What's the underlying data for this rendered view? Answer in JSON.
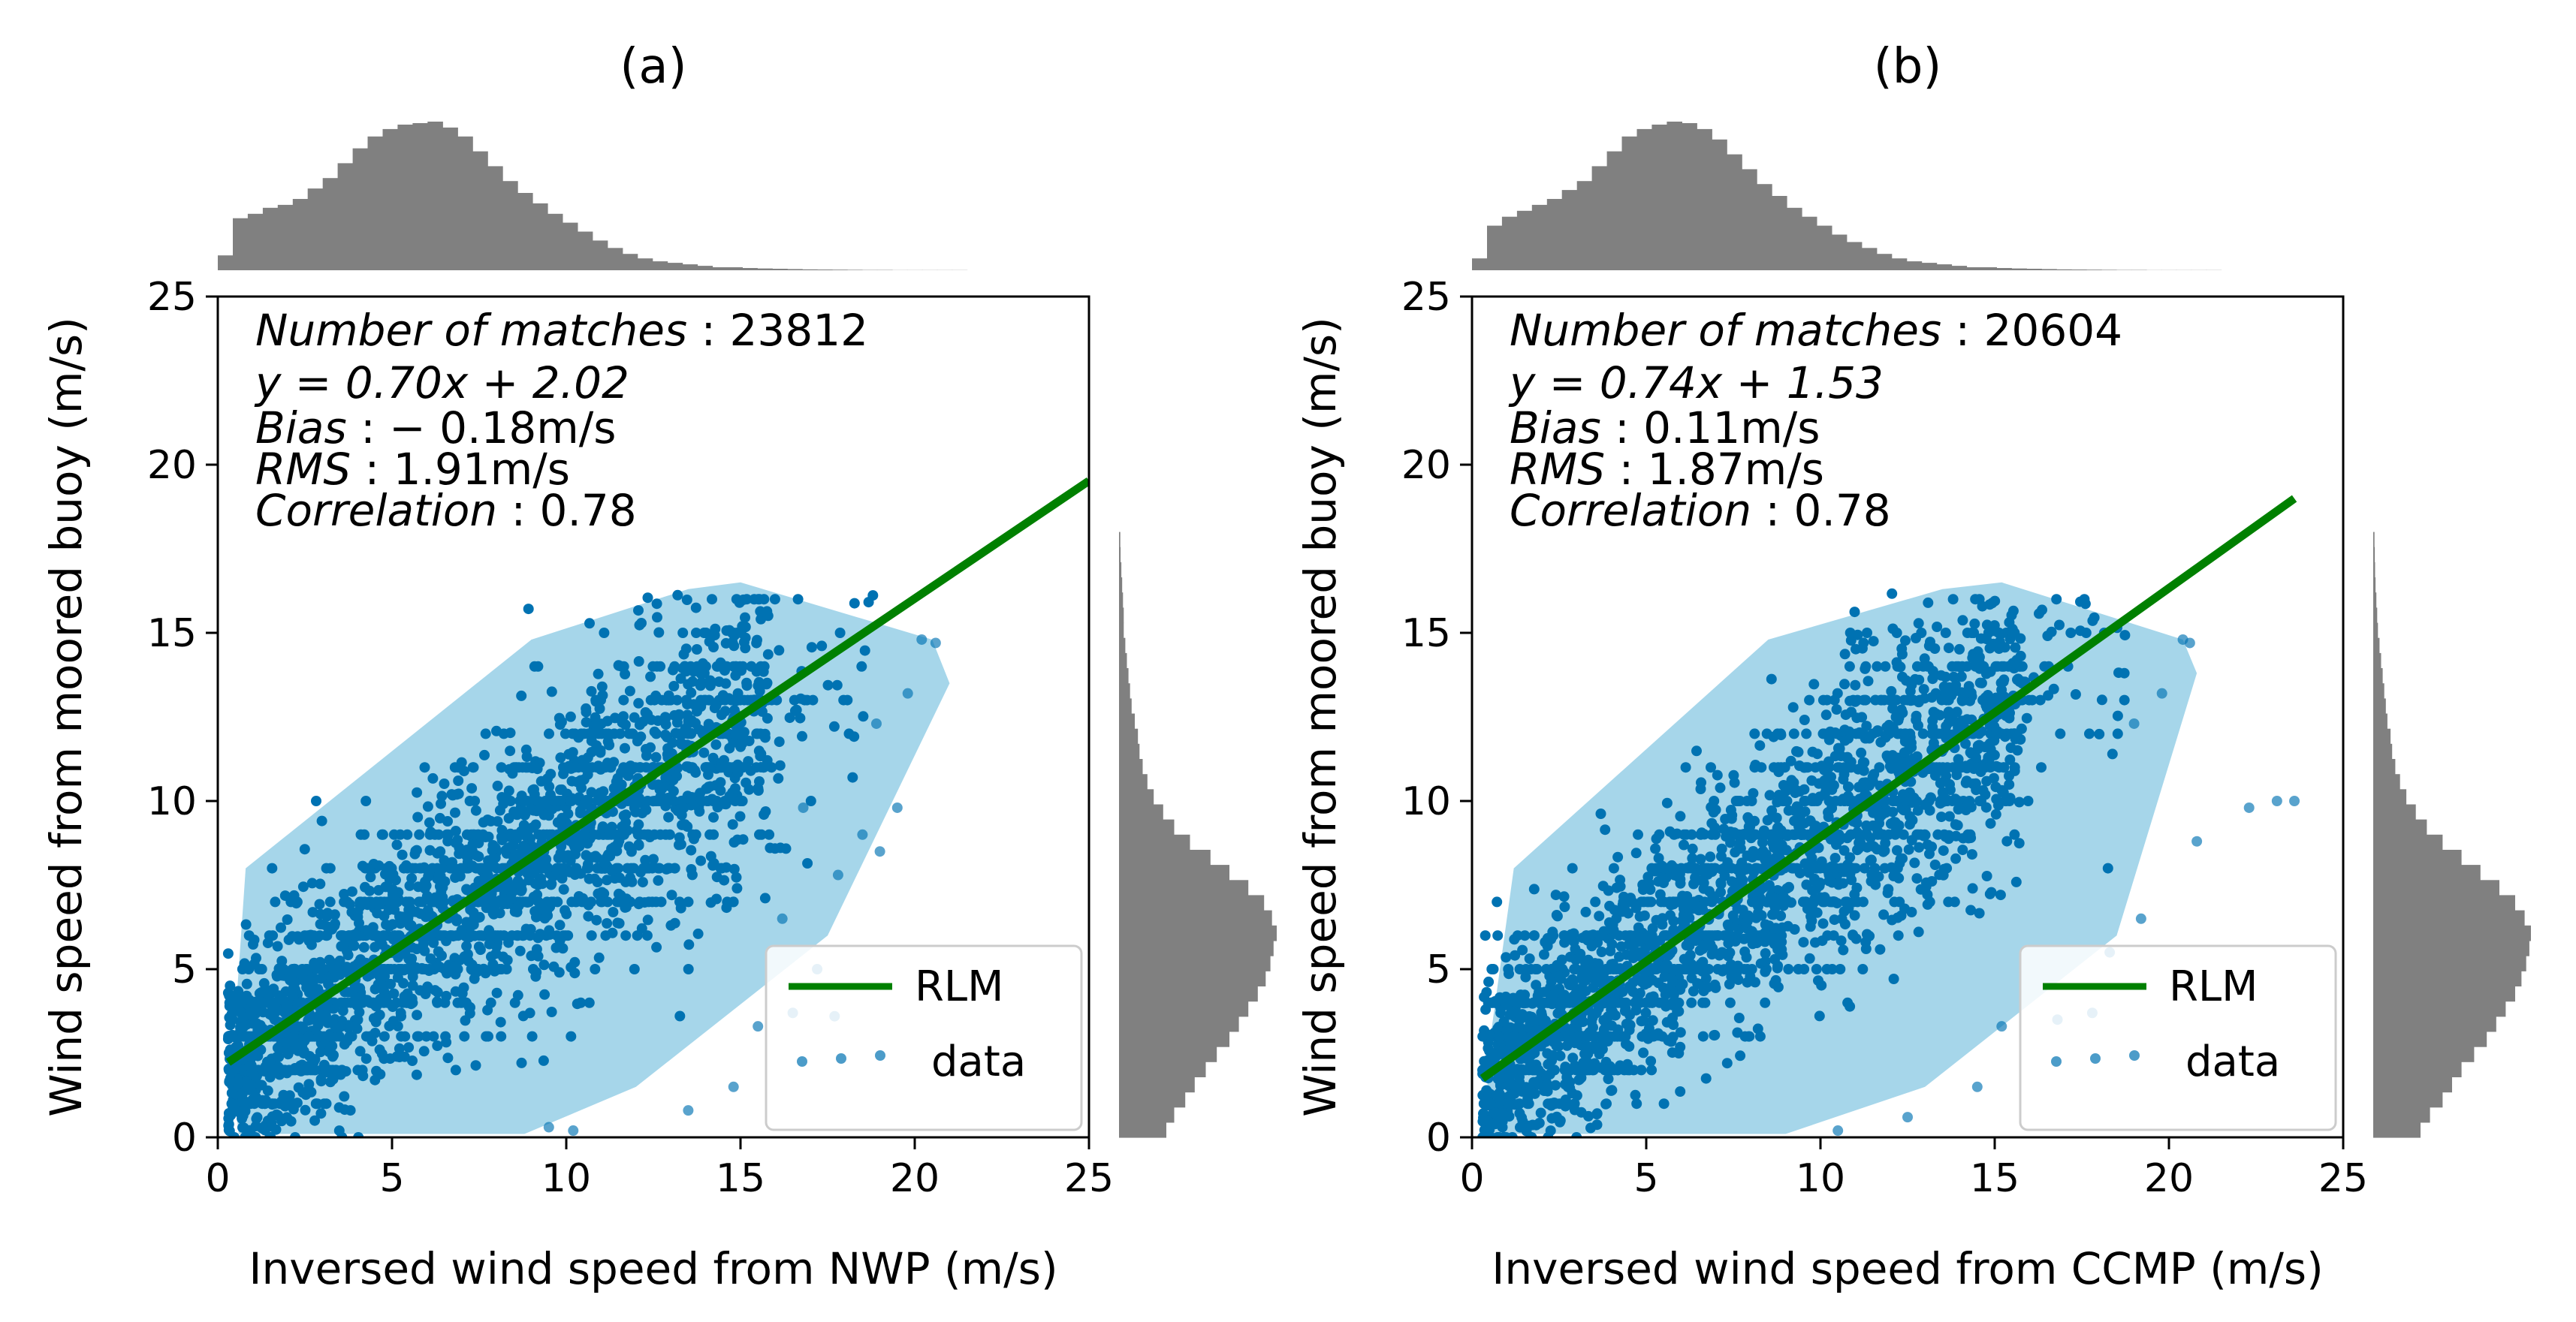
{
  "chart_data": [
    {
      "type": "scatter",
      "panel_title": "(a)",
      "xlabel": "Inversed wind speed from NWP (m/s)",
      "ylabel": "Wind speed from moored buoy (m/s)",
      "xlim": [
        0,
        25
      ],
      "ylim": [
        0,
        25
      ],
      "xticks": [
        0,
        5,
        10,
        15,
        20,
        25
      ],
      "yticks": [
        0,
        5,
        10,
        15,
        20,
        25
      ],
      "stats": {
        "matches_label": "Number of matches",
        "matches_value": "23812",
        "equation": "y = 0.70x + 2.02",
        "bias_label": "Bias",
        "bias_value": "− 0.18m/s",
        "rms_label": "RMS",
        "rms_value": "1.91m/s",
        "corr_label": "Correlation",
        "corr_value": "0.78"
      },
      "fit_line": {
        "slope": 0.7,
        "intercept": 2.02,
        "x_range": [
          0.3,
          25
        ]
      },
      "hull": [
        [
          0.6,
          0.1
        ],
        [
          8.8,
          0.1
        ],
        [
          12,
          1.5
        ],
        [
          17.5,
          6
        ],
        [
          21,
          13.5
        ],
        [
          20.5,
          14.8
        ],
        [
          15,
          16.5
        ],
        [
          13.5,
          16.3
        ],
        [
          9,
          14.8
        ],
        [
          0.8,
          8
        ],
        [
          0.4,
          2
        ]
      ],
      "outliers": [
        [
          19.5,
          9.8
        ],
        [
          18.5,
          9
        ],
        [
          19,
          8.5
        ],
        [
          17.8,
          7.8
        ],
        [
          16.8,
          9.8
        ],
        [
          16.2,
          6.5
        ],
        [
          17.2,
          5
        ],
        [
          16.5,
          3.7
        ],
        [
          17.7,
          3.6
        ],
        [
          15.5,
          3.3
        ],
        [
          20.2,
          14.8
        ],
        [
          20.6,
          14.7
        ],
        [
          19.8,
          13.2
        ],
        [
          18.9,
          12.3
        ],
        [
          14.8,
          1.5
        ],
        [
          13.5,
          0.8
        ],
        [
          10.2,
          0.2
        ],
        [
          9.5,
          0.3
        ]
      ],
      "top_hist": [
        0.1,
        0.35,
        0.38,
        0.42,
        0.44,
        0.48,
        0.55,
        0.62,
        0.72,
        0.82,
        0.9,
        0.95,
        0.98,
        0.99,
        1.0,
        0.96,
        0.9,
        0.8,
        0.7,
        0.6,
        0.52,
        0.45,
        0.38,
        0.32,
        0.26,
        0.2,
        0.15,
        0.11,
        0.08,
        0.06,
        0.05,
        0.04,
        0.03,
        0.02,
        0.02,
        0.015,
        0.012,
        0.01,
        0.008,
        0.006,
        0.005,
        0.004,
        0.003,
        0.002,
        0.002,
        0.001,
        0.001,
        0.001,
        0.001,
        0.001
      ],
      "right_hist": [
        0.3,
        0.35,
        0.42,
        0.48,
        0.55,
        0.62,
        0.7,
        0.76,
        0.82,
        0.88,
        0.93,
        0.96,
        0.98,
        1.0,
        0.97,
        0.92,
        0.82,
        0.7,
        0.58,
        0.45,
        0.35,
        0.28,
        0.22,
        0.18,
        0.15,
        0.13,
        0.12,
        0.1,
        0.08,
        0.07,
        0.06,
        0.05,
        0.04,
        0.03,
        0.03,
        0.025,
        0.02,
        0.015,
        0.01,
        0.008
      ],
      "legend": {
        "line": "RLM",
        "points": "data"
      },
      "colors": {
        "line": "#008000",
        "points": "#0072b2",
        "hull": "#a6d6ea",
        "hist": "#808080"
      }
    },
    {
      "type": "scatter",
      "panel_title": "(b)",
      "xlabel": "Inversed wind speed from CCMP (m/s)",
      "ylabel": "Wind speed from moored buoy (m/s)",
      "xlim": [
        0,
        25
      ],
      "ylim": [
        0,
        25
      ],
      "xticks": [
        0,
        5,
        10,
        15,
        20,
        25
      ],
      "yticks": [
        0,
        5,
        10,
        15,
        20,
        25
      ],
      "stats": {
        "matches_label": "Number of matches",
        "matches_value": "20604",
        "equation": "y = 0.74x + 1.53",
        "bias_label": "Bias",
        "bias_value": "0.11m/s",
        "rms_label": "RMS",
        "rms_value": "1.87m/s",
        "corr_label": "Correlation",
        "corr_value": "0.78"
      },
      "fit_line": {
        "slope": 0.74,
        "intercept": 1.53,
        "x_range": [
          0.3,
          23.6
        ]
      },
      "hull": [
        [
          0.6,
          0.1
        ],
        [
          9,
          0.1
        ],
        [
          13,
          1.5
        ],
        [
          18.5,
          6
        ],
        [
          20.8,
          13.8
        ],
        [
          20.4,
          14.8
        ],
        [
          15.2,
          16.5
        ],
        [
          13.5,
          16.3
        ],
        [
          8.5,
          14.8
        ],
        [
          1.2,
          8
        ],
        [
          0.4,
          2
        ]
      ],
      "outliers": [
        [
          23.1,
          10
        ],
        [
          23.6,
          10
        ],
        [
          22.3,
          9.8
        ],
        [
          20.8,
          8.8
        ],
        [
          19.2,
          6.5
        ],
        [
          18.3,
          5.5
        ],
        [
          17.8,
          3.7
        ],
        [
          16.8,
          3.5
        ],
        [
          15.2,
          3.3
        ],
        [
          20.4,
          14.8
        ],
        [
          20.6,
          14.7
        ],
        [
          19.8,
          13.2
        ],
        [
          19,
          12.3
        ],
        [
          14.5,
          1.5
        ],
        [
          12.5,
          0.6
        ],
        [
          10.5,
          0.2
        ]
      ],
      "top_hist": [
        0.08,
        0.3,
        0.36,
        0.4,
        0.44,
        0.48,
        0.54,
        0.6,
        0.7,
        0.8,
        0.9,
        0.95,
        0.98,
        1.0,
        0.99,
        0.95,
        0.88,
        0.78,
        0.68,
        0.58,
        0.5,
        0.42,
        0.36,
        0.3,
        0.24,
        0.19,
        0.15,
        0.11,
        0.08,
        0.06,
        0.05,
        0.04,
        0.03,
        0.02,
        0.02,
        0.015,
        0.012,
        0.01,
        0.008,
        0.006,
        0.005,
        0.004,
        0.003,
        0.002,
        0.002,
        0.001,
        0.001,
        0.001,
        0.001,
        0.001
      ],
      "right_hist": [
        0.3,
        0.36,
        0.44,
        0.5,
        0.56,
        0.64,
        0.72,
        0.78,
        0.84,
        0.9,
        0.94,
        0.97,
        0.99,
        1.0,
        0.96,
        0.9,
        0.8,
        0.68,
        0.56,
        0.44,
        0.34,
        0.27,
        0.21,
        0.17,
        0.14,
        0.12,
        0.11,
        0.09,
        0.08,
        0.07,
        0.06,
        0.05,
        0.04,
        0.03,
        0.025,
        0.02,
        0.015,
        0.012,
        0.01,
        0.008
      ],
      "legend": {
        "line": "RLM",
        "points": "data"
      },
      "colors": {
        "line": "#008000",
        "points": "#0072b2",
        "hull": "#a6d6ea",
        "hist": "#808080"
      }
    }
  ]
}
